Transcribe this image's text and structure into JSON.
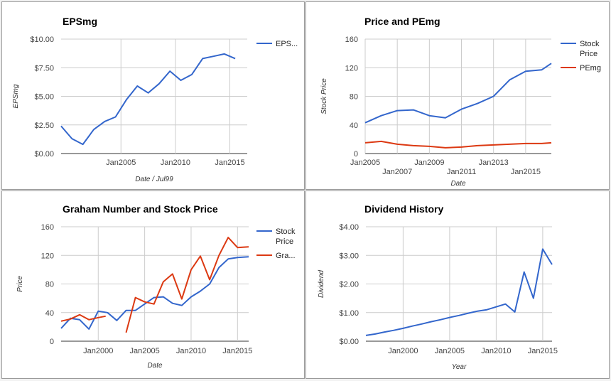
{
  "colors": {
    "blue": "#3366cc",
    "red": "#dc3912",
    "grid": "#cccccc"
  },
  "chart_data": [
    {
      "id": "epsmg",
      "type": "line",
      "title": "EPSmg",
      "xlabel": "Date / Jul99",
      "ylabel": "EPSmg",
      "ylim": [
        0,
        10
      ],
      "xlim": [
        1999.5,
        2016.6
      ],
      "yticks": [
        0,
        2.5,
        5,
        7.5,
        10
      ],
      "ytick_labels": [
        "$0.00",
        "$2.50",
        "$5.00",
        "$7.50",
        "$10.00"
      ],
      "xticks": [
        2005,
        2010,
        2015
      ],
      "xtick_labels": [
        "Jan2005",
        "Jan2010",
        "Jan2015"
      ],
      "grid": true,
      "legend_position": "right",
      "series": [
        {
          "name": "EPS...",
          "color": "#3366cc",
          "x": [
            1999.5,
            2000.5,
            2001.5,
            2002.5,
            2003.5,
            2004.5,
            2005.5,
            2006.5,
            2007.5,
            2008.5,
            2009.5,
            2010.5,
            2011.5,
            2012.5,
            2013.5,
            2014.5,
            2015.5
          ],
          "y": [
            2.4,
            1.3,
            0.8,
            2.1,
            2.8,
            3.2,
            4.7,
            5.9,
            5.3,
            6.1,
            7.2,
            6.4,
            6.9,
            8.3,
            8.5,
            8.7,
            8.3
          ]
        }
      ]
    },
    {
      "id": "price-pemg",
      "type": "line",
      "title": "Price and PEmg",
      "xlabel": "Date",
      "ylabel": "Stock Price",
      "ylim": [
        0,
        160
      ],
      "xlim": [
        2005,
        2016.6
      ],
      "yticks": [
        0,
        40,
        80,
        120,
        160
      ],
      "ytick_labels": [
        "0",
        "40",
        "80",
        "120",
        "160"
      ],
      "xticks": [
        2005,
        2007,
        2009,
        2011,
        2013,
        2015
      ],
      "xtick_labels": [
        "Jan2005",
        "Jan2007",
        "Jan2009",
        "Jan2011",
        "Jan2013",
        "Jan2015"
      ],
      "grid": true,
      "legend_position": "right",
      "series": [
        {
          "name": "Stock Price",
          "color": "#3366cc",
          "x": [
            2005,
            2006,
            2007,
            2008,
            2009,
            2010,
            2011,
            2012,
            2013,
            2014,
            2015,
            2016,
            2016.6
          ],
          "y": [
            43,
            53,
            60,
            61,
            53,
            50,
            62,
            70,
            80,
            103,
            115,
            117,
            126
          ]
        },
        {
          "name": "PEmg",
          "color": "#dc3912",
          "x": [
            2005,
            2006,
            2007,
            2008,
            2009,
            2010,
            2011,
            2012,
            2013,
            2014,
            2015,
            2016,
            2016.6
          ],
          "y": [
            15,
            17,
            13,
            11,
            10,
            8,
            9,
            11,
            12,
            13,
            14,
            14,
            15
          ]
        }
      ]
    },
    {
      "id": "graham",
      "type": "line",
      "title": "Graham Number and Stock Price",
      "xlabel": "Date",
      "ylabel": "Price",
      "ylim": [
        0,
        160
      ],
      "xlim": [
        1996,
        2016.2
      ],
      "yticks": [
        0,
        40,
        80,
        120,
        160
      ],
      "ytick_labels": [
        "0",
        "40",
        "80",
        "120",
        "160"
      ],
      "xticks": [
        2000,
        2005,
        2010,
        2015
      ],
      "xtick_labels": [
        "Jan2000",
        "Jan2005",
        "Jan2010",
        "Jan2015"
      ],
      "grid": true,
      "legend_position": "right",
      "series": [
        {
          "name": "Stock Price",
          "color": "#3366cc",
          "x": [
            1996,
            1997,
            1998,
            1999,
            2000,
            2001,
            2002,
            2003,
            2004,
            2005,
            2006,
            2007,
            2008,
            2009,
            2010,
            2011,
            2012,
            2013,
            2014,
            2015,
            2016.2
          ],
          "y": [
            18,
            32,
            30,
            17,
            42,
            40,
            29,
            43,
            43,
            52,
            61,
            62,
            53,
            50,
            62,
            70,
            80,
            103,
            115,
            117,
            118
          ]
        },
        {
          "name": "Gra...",
          "color": "#dc3912",
          "x": [
            1996,
            1997,
            1998,
            1999,
            2000,
            2000.8,
            null,
            2003,
            2004,
            2005,
            2006,
            2007,
            2008,
            2009,
            2010,
            2011,
            2012,
            2013,
            2014,
            2015,
            2016.2
          ],
          "y": [
            28,
            31,
            37,
            30,
            33,
            35,
            null,
            12,
            61,
            55,
            52,
            83,
            94,
            59,
            100,
            119,
            86,
            120,
            145,
            131,
            132
          ]
        }
      ]
    },
    {
      "id": "dividend",
      "type": "line",
      "title": "Dividend History",
      "xlabel": "Year",
      "ylabel": "Dividend",
      "ylim": [
        0,
        4
      ],
      "xlim": [
        1996,
        2016
      ],
      "yticks": [
        0,
        1,
        2,
        3,
        4
      ],
      "ytick_labels": [
        "$0.00",
        "$1.00",
        "$2.00",
        "$3.00",
        "$4.00"
      ],
      "xticks": [
        2000,
        2005,
        2010,
        2015
      ],
      "xtick_labels": [
        "Jan2000",
        "Jan2005",
        "Jan2010",
        "Jan2015"
      ],
      "grid": true,
      "legend_position": "none",
      "series": [
        {
          "name": "",
          "color": "#3366cc",
          "x": [
            1996,
            1997,
            1998,
            1999,
            2000,
            2001,
            2002,
            2003,
            2004,
            2005,
            2006,
            2007,
            2008,
            2009,
            2010,
            2011,
            2012,
            2013,
            2014,
            2015,
            2016
          ],
          "y": [
            0.2,
            0.25,
            0.32,
            0.38,
            0.45,
            0.53,
            0.6,
            0.68,
            0.75,
            0.83,
            0.9,
            0.98,
            1.05,
            1.1,
            1.2,
            1.3,
            1.02,
            2.42,
            1.5,
            3.22,
            2.68
          ]
        }
      ]
    }
  ]
}
